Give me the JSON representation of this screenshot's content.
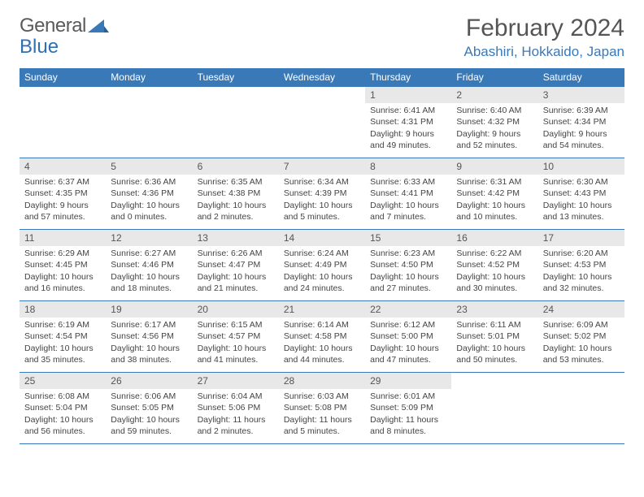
{
  "brand": {
    "part1": "General",
    "part2": "Blue"
  },
  "title": "February 2024",
  "location": "Abashiri, Hokkaido, Japan",
  "accent_color": "#3a79b8",
  "header_bg": "#3a79b8",
  "daynum_bg": "#e8e8e8",
  "text_color": "#444444",
  "day_headers": [
    "Sunday",
    "Monday",
    "Tuesday",
    "Wednesday",
    "Thursday",
    "Friday",
    "Saturday"
  ],
  "weeks": [
    [
      null,
      null,
      null,
      null,
      {
        "n": "1",
        "sunrise": "6:41 AM",
        "sunset": "4:31 PM",
        "daylight": "9 hours and 49 minutes."
      },
      {
        "n": "2",
        "sunrise": "6:40 AM",
        "sunset": "4:32 PM",
        "daylight": "9 hours and 52 minutes."
      },
      {
        "n": "3",
        "sunrise": "6:39 AM",
        "sunset": "4:34 PM",
        "daylight": "9 hours and 54 minutes."
      }
    ],
    [
      {
        "n": "4",
        "sunrise": "6:37 AM",
        "sunset": "4:35 PM",
        "daylight": "9 hours and 57 minutes."
      },
      {
        "n": "5",
        "sunrise": "6:36 AM",
        "sunset": "4:36 PM",
        "daylight": "10 hours and 0 minutes."
      },
      {
        "n": "6",
        "sunrise": "6:35 AM",
        "sunset": "4:38 PM",
        "daylight": "10 hours and 2 minutes."
      },
      {
        "n": "7",
        "sunrise": "6:34 AM",
        "sunset": "4:39 PM",
        "daylight": "10 hours and 5 minutes."
      },
      {
        "n": "8",
        "sunrise": "6:33 AM",
        "sunset": "4:41 PM",
        "daylight": "10 hours and 7 minutes."
      },
      {
        "n": "9",
        "sunrise": "6:31 AM",
        "sunset": "4:42 PM",
        "daylight": "10 hours and 10 minutes."
      },
      {
        "n": "10",
        "sunrise": "6:30 AM",
        "sunset": "4:43 PM",
        "daylight": "10 hours and 13 minutes."
      }
    ],
    [
      {
        "n": "11",
        "sunrise": "6:29 AM",
        "sunset": "4:45 PM",
        "daylight": "10 hours and 16 minutes."
      },
      {
        "n": "12",
        "sunrise": "6:27 AM",
        "sunset": "4:46 PM",
        "daylight": "10 hours and 18 minutes."
      },
      {
        "n": "13",
        "sunrise": "6:26 AM",
        "sunset": "4:47 PM",
        "daylight": "10 hours and 21 minutes."
      },
      {
        "n": "14",
        "sunrise": "6:24 AM",
        "sunset": "4:49 PM",
        "daylight": "10 hours and 24 minutes."
      },
      {
        "n": "15",
        "sunrise": "6:23 AM",
        "sunset": "4:50 PM",
        "daylight": "10 hours and 27 minutes."
      },
      {
        "n": "16",
        "sunrise": "6:22 AM",
        "sunset": "4:52 PM",
        "daylight": "10 hours and 30 minutes."
      },
      {
        "n": "17",
        "sunrise": "6:20 AM",
        "sunset": "4:53 PM",
        "daylight": "10 hours and 32 minutes."
      }
    ],
    [
      {
        "n": "18",
        "sunrise": "6:19 AM",
        "sunset": "4:54 PM",
        "daylight": "10 hours and 35 minutes."
      },
      {
        "n": "19",
        "sunrise": "6:17 AM",
        "sunset": "4:56 PM",
        "daylight": "10 hours and 38 minutes."
      },
      {
        "n": "20",
        "sunrise": "6:15 AM",
        "sunset": "4:57 PM",
        "daylight": "10 hours and 41 minutes."
      },
      {
        "n": "21",
        "sunrise": "6:14 AM",
        "sunset": "4:58 PM",
        "daylight": "10 hours and 44 minutes."
      },
      {
        "n": "22",
        "sunrise": "6:12 AM",
        "sunset": "5:00 PM",
        "daylight": "10 hours and 47 minutes."
      },
      {
        "n": "23",
        "sunrise": "6:11 AM",
        "sunset": "5:01 PM",
        "daylight": "10 hours and 50 minutes."
      },
      {
        "n": "24",
        "sunrise": "6:09 AM",
        "sunset": "5:02 PM",
        "daylight": "10 hours and 53 minutes."
      }
    ],
    [
      {
        "n": "25",
        "sunrise": "6:08 AM",
        "sunset": "5:04 PM",
        "daylight": "10 hours and 56 minutes."
      },
      {
        "n": "26",
        "sunrise": "6:06 AM",
        "sunset": "5:05 PM",
        "daylight": "10 hours and 59 minutes."
      },
      {
        "n": "27",
        "sunrise": "6:04 AM",
        "sunset": "5:06 PM",
        "daylight": "11 hours and 2 minutes."
      },
      {
        "n": "28",
        "sunrise": "6:03 AM",
        "sunset": "5:08 PM",
        "daylight": "11 hours and 5 minutes."
      },
      {
        "n": "29",
        "sunrise": "6:01 AM",
        "sunset": "5:09 PM",
        "daylight": "11 hours and 8 minutes."
      },
      null,
      null
    ]
  ],
  "labels": {
    "sunrise": "Sunrise:",
    "sunset": "Sunset:",
    "daylight": "Daylight:"
  }
}
